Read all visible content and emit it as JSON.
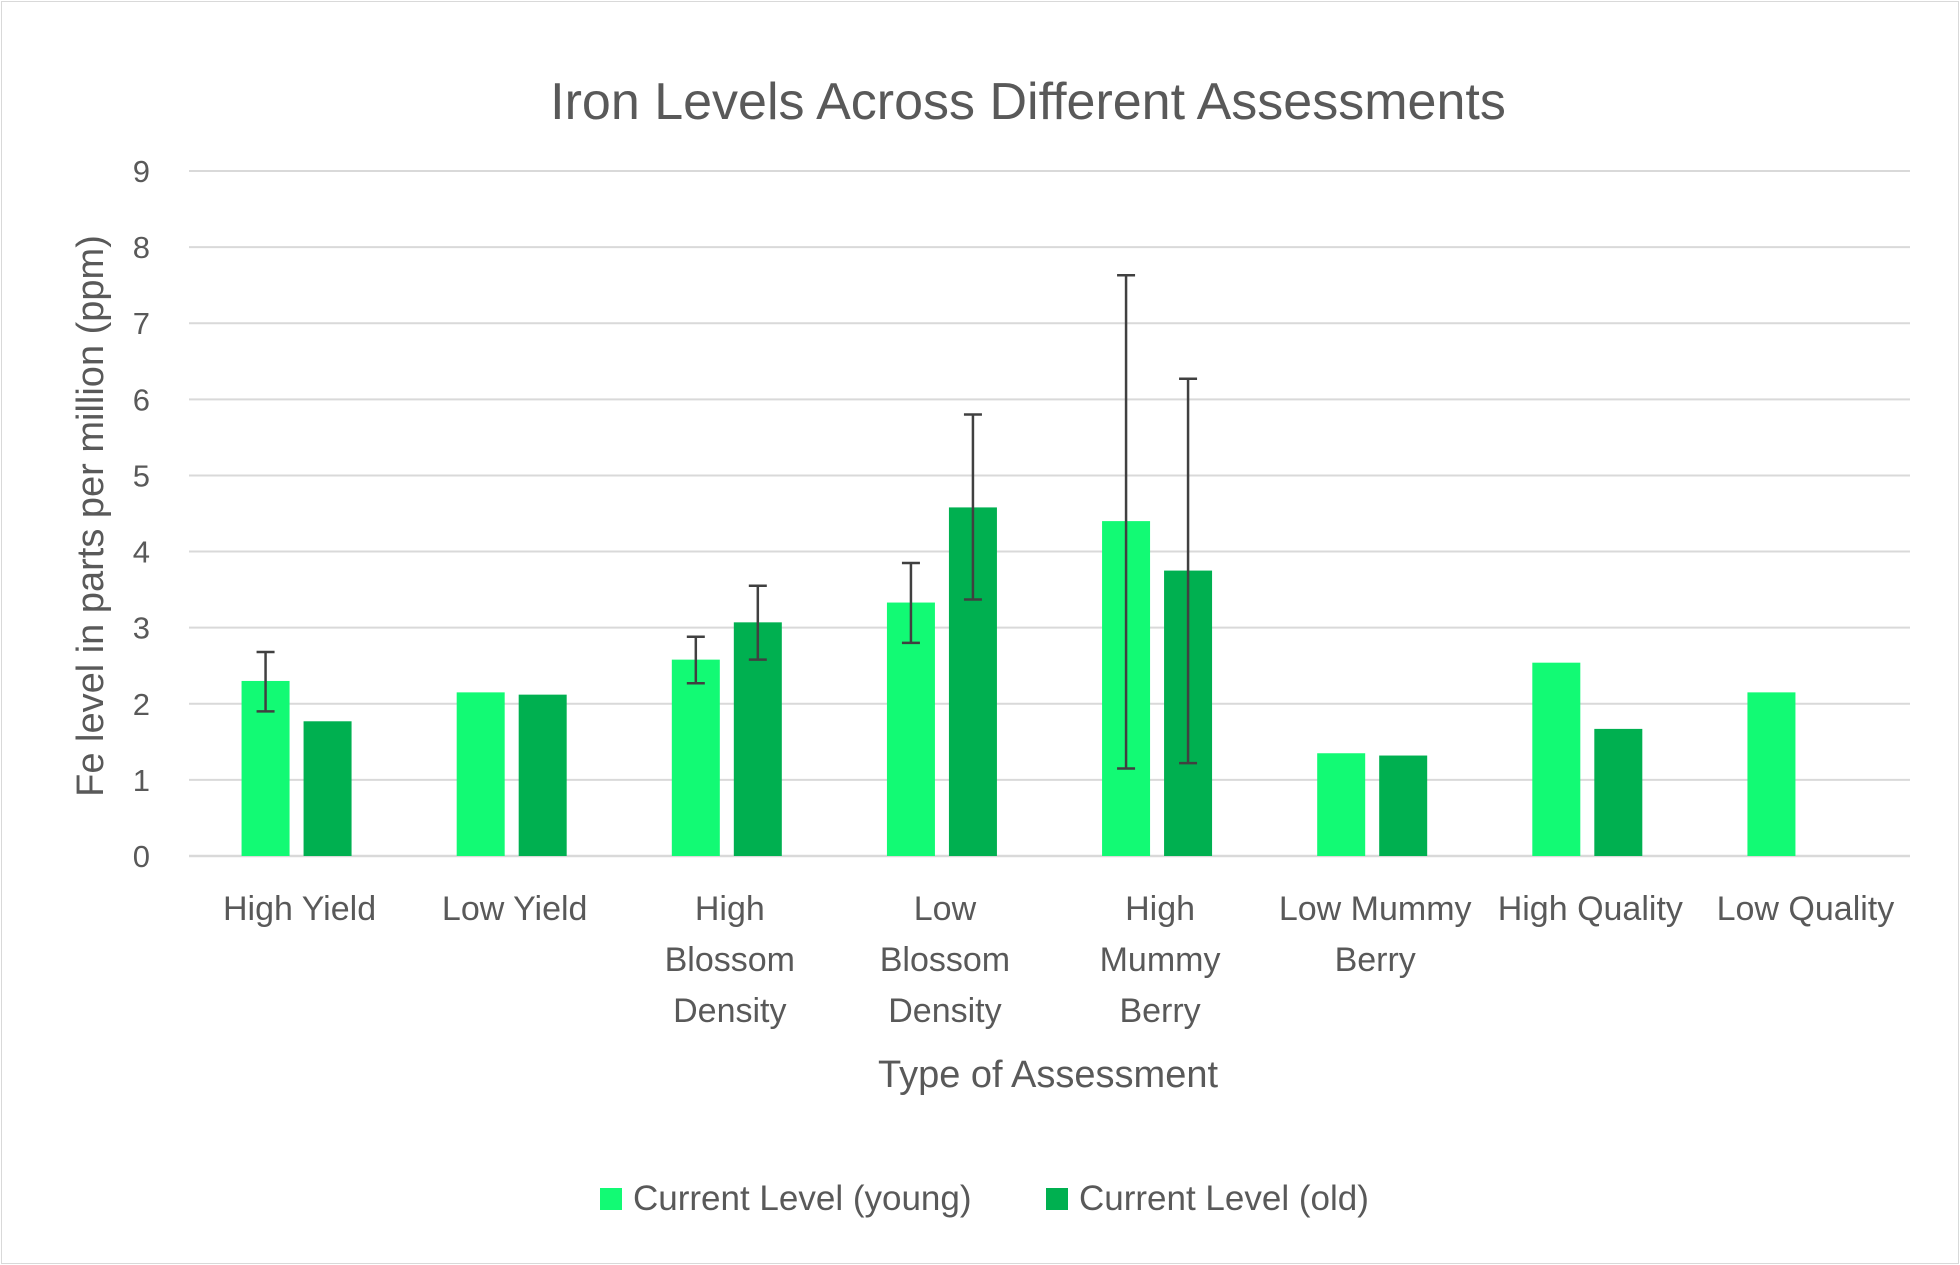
{
  "chart_data": {
    "type": "bar",
    "title": "Iron Levels Across Different Assessments",
    "xlabel": "Type of Assessment",
    "ylabel": "Fe level in parts per million (ppm)",
    "ylim": [
      0,
      9
    ],
    "yticks": [
      0,
      1,
      2,
      3,
      4,
      5,
      6,
      7,
      8,
      9
    ],
    "grid": true,
    "legend_position": "bottom",
    "categories": [
      [
        "High Yield"
      ],
      [
        "Low Yield"
      ],
      [
        "High",
        "Blossom",
        "Density"
      ],
      [
        "Low",
        "Blossom",
        "Density"
      ],
      [
        "High",
        "Mummy",
        "Berry"
      ],
      [
        "Low Mummy",
        "Berry"
      ],
      [
        "High Quality"
      ],
      [
        "Low Quality"
      ]
    ],
    "series": [
      {
        "name": "Current Level (young)",
        "color": "#12fa74",
        "values": [
          2.3,
          2.15,
          2.58,
          3.33,
          4.4,
          1.35,
          2.54,
          2.15
        ],
        "errors": [
          [
            1.9,
            2.68
          ],
          null,
          [
            2.27,
            2.88
          ],
          [
            2.8,
            3.85
          ],
          [
            1.15,
            7.63
          ],
          null,
          null,
          null
        ]
      },
      {
        "name": "Current Level (old)",
        "color": "#00b050",
        "values": [
          1.77,
          2.12,
          3.07,
          4.58,
          3.75,
          1.32,
          1.67,
          null
        ],
        "errors": [
          null,
          null,
          [
            2.58,
            3.55
          ],
          [
            3.37,
            5.8
          ],
          [
            1.22,
            6.27
          ],
          null,
          null,
          null
        ]
      }
    ]
  }
}
